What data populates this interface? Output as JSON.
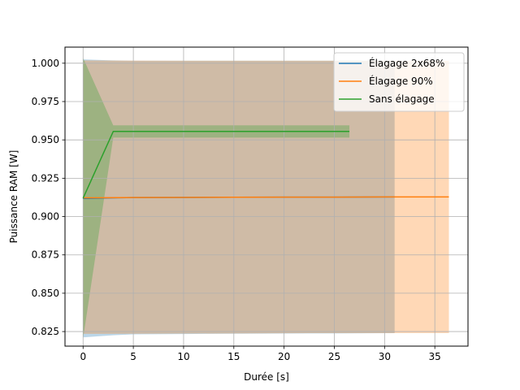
{
  "chart_data": {
    "type": "line",
    "title": "",
    "xlabel": "Durée [s]",
    "ylabel": "Puissance RAM [W]",
    "xlim": [
      -1.8,
      38.3
    ],
    "ylim": [
      0.8155,
      1.0105
    ],
    "x_ticks": [
      0,
      5,
      10,
      15,
      20,
      25,
      30,
      35
    ],
    "x_tick_labels": [
      "0",
      "5",
      "10",
      "15",
      "20",
      "25",
      "30",
      "35"
    ],
    "y_ticks": [
      0.825,
      0.85,
      0.875,
      0.9,
      0.925,
      0.95,
      0.975,
      1.0
    ],
    "y_tick_labels": [
      "0.825",
      "0.850",
      "0.875",
      "0.900",
      "0.925",
      "0.950",
      "0.975",
      "1.000"
    ],
    "grid": true,
    "legend_position": "top-right",
    "series": [
      {
        "name": "Élagage 2x68%",
        "color": "#1f77b4",
        "x": [
          0,
          3,
          5,
          10,
          15,
          20,
          25,
          31
        ],
        "y": [
          0.9118,
          0.9122,
          0.9124,
          0.9125,
          0.9126,
          0.9127,
          0.9127,
          0.9128
        ],
        "band_upper": [
          1.0025,
          1.0018,
          1.0016,
          1.0016,
          1.0016,
          1.0016,
          1.0016,
          1.0016
        ],
        "band_lower": [
          0.8212,
          0.8226,
          0.8232,
          0.8234,
          0.8236,
          0.8237,
          0.8238,
          0.824
        ]
      },
      {
        "name": "Élagage 90%",
        "color": "#ff7f0e",
        "x": [
          0,
          5,
          10,
          15,
          20,
          25,
          30,
          36.4
        ],
        "y": [
          0.9122,
          0.9124,
          0.9125,
          0.9126,
          0.9127,
          0.9127,
          0.9128,
          0.9128
        ],
        "band_upper": [
          1.0018,
          1.0017,
          1.0016,
          1.0016,
          1.0016,
          1.0016,
          1.0016,
          1.0016
        ],
        "band_lower": [
          0.8235,
          0.8236,
          0.8237,
          0.8238,
          0.8239,
          0.824,
          0.824,
          0.824
        ]
      },
      {
        "name": "Sans élagage",
        "color": "#2ca02c",
        "x": [
          0,
          3,
          26.5
        ],
        "y": [
          0.912,
          0.9555,
          0.9555
        ],
        "band_upper": [
          1.0035,
          0.9595,
          0.9595
        ],
        "band_lower": [
          0.8205,
          0.9515,
          0.9515
        ]
      }
    ]
  }
}
